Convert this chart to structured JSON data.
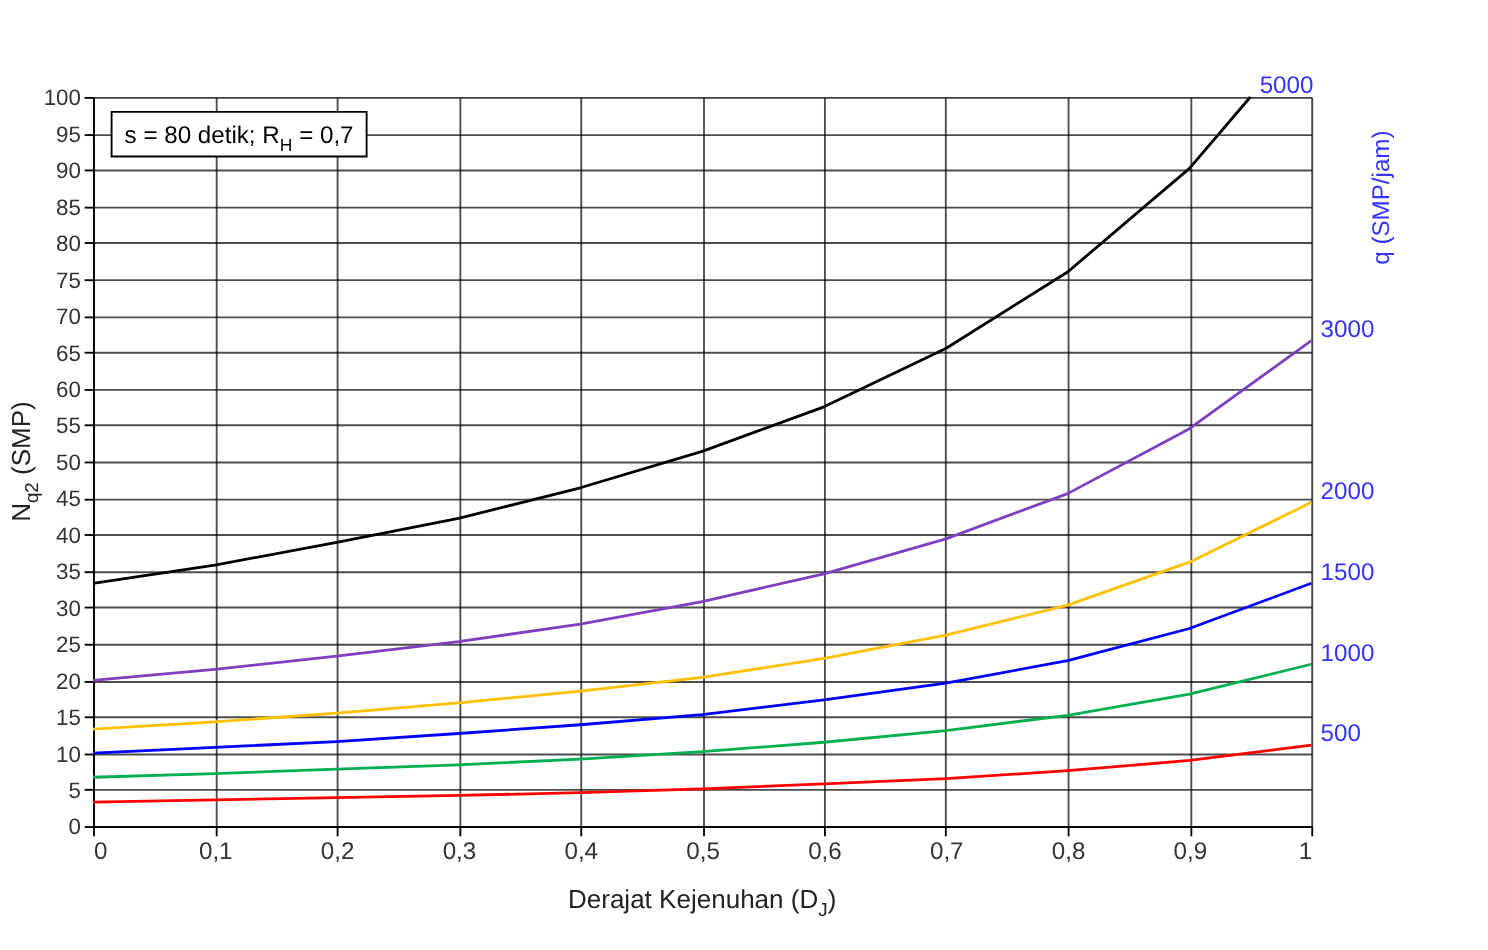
{
  "chart_data": {
    "type": "line",
    "xlabel": "Derajat Kejenuhan (D$_{J}$)",
    "ylabel": "N$_{q2}$ (SMP)",
    "y2label": "q (SMP/jam)",
    "x": [
      0,
      0.1,
      0.2,
      0.3,
      0.4,
      0.5,
      0.6,
      0.7,
      0.8,
      0.9,
      1
    ],
    "series": [
      {
        "name": "5000",
        "color": "#000000",
        "x": [
          0,
          0.1,
          0.2,
          0.3,
          0.4,
          0.5,
          0.6,
          0.7,
          0.8,
          0.9,
          0.95
        ],
        "values": [
          33.3,
          35.8,
          38.9,
          42.2,
          46.4,
          51.4,
          57.5,
          65.5,
          76,
          90.2,
          100
        ]
      },
      {
        "name": "3000",
        "color": "#7f3fbf",
        "values": [
          20,
          21.5,
          23.3,
          25.3,
          27.7,
          30.8,
          34.6,
          39.4,
          45.6,
          54.5,
          66.6
        ]
      },
      {
        "name": "2000",
        "color": "#ffc000",
        "values": [
          13.3,
          14.3,
          15.5,
          16.9,
          18.5,
          20.4,
          23,
          26.2,
          30.3,
          36.2,
          44.4
        ]
      },
      {
        "name": "1500",
        "color": "#0000ff",
        "values": [
          10,
          10.8,
          11.6,
          12.7,
          13.9,
          15.3,
          17.3,
          19.6,
          22.7,
          27.1,
          33.3
        ]
      },
      {
        "name": "1000",
        "color": "#00b050",
        "values": [
          6.7,
          7.2,
          7.8,
          8.4,
          9.2,
          10.2,
          11.5,
          13.1,
          15.2,
          18.1,
          22.2
        ]
      },
      {
        "name": "500",
        "color": "#ff0000",
        "values": [
          3.3,
          3.6,
          3.9,
          4.2,
          4.6,
          5.1,
          5.8,
          6.5,
          7.6,
          9,
          11.1
        ]
      }
    ],
    "xlim": [
      0,
      1
    ],
    "xticks": [
      0,
      {
        "value": 0.1,
        "label": "0,1"
      },
      {
        "value": 0.2,
        "label": "0,2"
      },
      {
        "value": 0.3,
        "label": "0,3"
      },
      {
        "value": 0.4,
        "label": "0,4"
      },
      {
        "value": 0.5,
        "label": "0,5"
      },
      {
        "value": 0.6,
        "label": "0,6"
      },
      {
        "value": 0.7,
        "label": "0,7"
      },
      {
        "value": 0.8,
        "label": "0,8"
      },
      {
        "value": 0.9,
        "label": "0,9"
      },
      1
    ],
    "ylim": [
      0,
      100
    ],
    "yticks": [
      0,
      5,
      10,
      15,
      20,
      25,
      30,
      35,
      40,
      45,
      50,
      55,
      60,
      65,
      70,
      75,
      80,
      85,
      90,
      95,
      100
    ],
    "annotations": [
      "s = 80 detik; R$_{H}$ = 0,7"
    ],
    "grid": true,
    "legend": false,
    "marker": "none",
    "line_style": "solid"
  }
}
